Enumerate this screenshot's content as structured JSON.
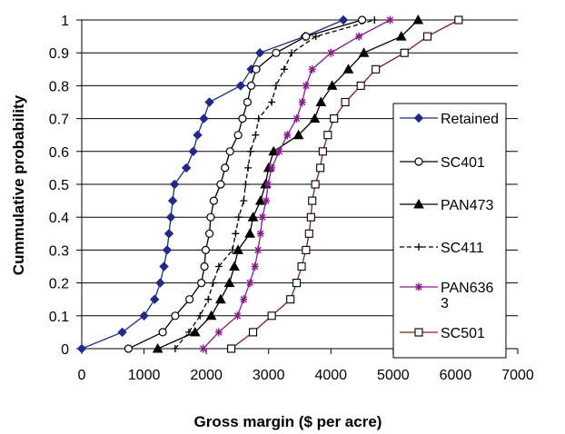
{
  "chart_data": {
    "type": "line",
    "title": "",
    "xlabel": "Gross margin ($ per acre)",
    "ylabel": "Cummulative probability",
    "xlim": [
      0,
      7000
    ],
    "ylim": [
      0,
      1
    ],
    "xticks": [
      0,
      1000,
      2000,
      3000,
      4000,
      5000,
      6000,
      7000
    ],
    "yticks": [
      0,
      0.1,
      0.2,
      0.3,
      0.4,
      0.5,
      0.6,
      0.7,
      0.8,
      0.9,
      1
    ],
    "grid": "horizontal",
    "legend": "right",
    "series": [
      {
        "name": "Retained",
        "color": "#1f2a8c",
        "marker": "diamond-filled",
        "points": [
          [
            0,
            0
          ],
          [
            650,
            0.05
          ],
          [
            1000,
            0.1
          ],
          [
            1170,
            0.15
          ],
          [
            1260,
            0.2
          ],
          [
            1320,
            0.25
          ],
          [
            1370,
            0.3
          ],
          [
            1400,
            0.35
          ],
          [
            1430,
            0.4
          ],
          [
            1460,
            0.45
          ],
          [
            1490,
            0.5
          ],
          [
            1680,
            0.55
          ],
          [
            1790,
            0.6
          ],
          [
            1860,
            0.65
          ],
          [
            1960,
            0.7
          ],
          [
            2050,
            0.75
          ],
          [
            2550,
            0.8
          ],
          [
            2720,
            0.85
          ],
          [
            2860,
            0.9
          ],
          [
            3580,
            0.95
          ],
          [
            4200,
            1
          ]
        ]
      },
      {
        "name": "SC401",
        "color": "#000000",
        "marker": "circle-open",
        "points": [
          [
            750,
            0
          ],
          [
            1300,
            0.05
          ],
          [
            1500,
            0.1
          ],
          [
            1730,
            0.15
          ],
          [
            1920,
            0.2
          ],
          [
            1970,
            0.25
          ],
          [
            1990,
            0.3
          ],
          [
            2050,
            0.35
          ],
          [
            2070,
            0.4
          ],
          [
            2120,
            0.45
          ],
          [
            2230,
            0.5
          ],
          [
            2300,
            0.55
          ],
          [
            2380,
            0.6
          ],
          [
            2510,
            0.65
          ],
          [
            2580,
            0.7
          ],
          [
            2660,
            0.75
          ],
          [
            2720,
            0.8
          ],
          [
            2800,
            0.85
          ],
          [
            3120,
            0.9
          ],
          [
            3600,
            0.95
          ],
          [
            4500,
            1
          ]
        ]
      },
      {
        "name": "PAN473",
        "color": "#000000",
        "marker": "triangle-filled",
        "points": [
          [
            1220,
            0
          ],
          [
            1820,
            0.05
          ],
          [
            2080,
            0.1
          ],
          [
            2230,
            0.15
          ],
          [
            2370,
            0.2
          ],
          [
            2450,
            0.25
          ],
          [
            2510,
            0.3
          ],
          [
            2700,
            0.35
          ],
          [
            2750,
            0.4
          ],
          [
            2870,
            0.45
          ],
          [
            2950,
            0.5
          ],
          [
            3000,
            0.55
          ],
          [
            3080,
            0.6
          ],
          [
            3480,
            0.65
          ],
          [
            3740,
            0.7
          ],
          [
            3840,
            0.75
          ],
          [
            4020,
            0.8
          ],
          [
            4280,
            0.85
          ],
          [
            4530,
            0.9
          ],
          [
            5130,
            0.95
          ],
          [
            5400,
            1
          ]
        ]
      },
      {
        "name": "SC411",
        "color": "#000000",
        "marker": "plus",
        "points": [
          [
            1500,
            0
          ],
          [
            1720,
            0.05
          ],
          [
            1900,
            0.1
          ],
          [
            2030,
            0.15
          ],
          [
            2110,
            0.2
          ],
          [
            2200,
            0.25
          ],
          [
            2420,
            0.3
          ],
          [
            2470,
            0.35
          ],
          [
            2520,
            0.4
          ],
          [
            2600,
            0.45
          ],
          [
            2630,
            0.5
          ],
          [
            2670,
            0.55
          ],
          [
            2710,
            0.6
          ],
          [
            2790,
            0.65
          ],
          [
            2840,
            0.7
          ],
          [
            3050,
            0.75
          ],
          [
            3120,
            0.8
          ],
          [
            3250,
            0.85
          ],
          [
            3370,
            0.9
          ],
          [
            3760,
            0.95
          ],
          [
            4700,
            1
          ]
        ]
      },
      {
        "name": "PAN6363",
        "color": "#8b1a8b",
        "marker": "asterisk",
        "points": [
          [
            1950,
            0
          ],
          [
            2200,
            0.05
          ],
          [
            2500,
            0.1
          ],
          [
            2600,
            0.15
          ],
          [
            2700,
            0.2
          ],
          [
            2780,
            0.25
          ],
          [
            2830,
            0.3
          ],
          [
            2870,
            0.35
          ],
          [
            2900,
            0.4
          ],
          [
            2960,
            0.45
          ],
          [
            2990,
            0.5
          ],
          [
            3050,
            0.55
          ],
          [
            3170,
            0.6
          ],
          [
            3300,
            0.65
          ],
          [
            3450,
            0.7
          ],
          [
            3540,
            0.75
          ],
          [
            3600,
            0.8
          ],
          [
            3700,
            0.85
          ],
          [
            4000,
            0.9
          ],
          [
            4450,
            0.95
          ],
          [
            4950,
            1
          ]
        ]
      },
      {
        "name": "SC501",
        "color": "#8b1a1a",
        "marker": "square-open",
        "points": [
          [
            2400,
            0
          ],
          [
            2750,
            0.05
          ],
          [
            3050,
            0.1
          ],
          [
            3350,
            0.15
          ],
          [
            3450,
            0.2
          ],
          [
            3530,
            0.25
          ],
          [
            3600,
            0.3
          ],
          [
            3650,
            0.35
          ],
          [
            3680,
            0.4
          ],
          [
            3700,
            0.45
          ],
          [
            3750,
            0.5
          ],
          [
            3830,
            0.55
          ],
          [
            3870,
            0.6
          ],
          [
            3950,
            0.65
          ],
          [
            4050,
            0.7
          ],
          [
            4230,
            0.75
          ],
          [
            4480,
            0.8
          ],
          [
            4720,
            0.85
          ],
          [
            5180,
            0.9
          ],
          [
            5550,
            0.95
          ],
          [
            6050,
            1
          ]
        ]
      }
    ],
    "legend_entries": [
      {
        "label": "Retained"
      },
      {
        "label": "SC401"
      },
      {
        "label": "PAN473"
      },
      {
        "label": "SC411"
      },
      {
        "label": "PAN636",
        "label_line2": "3"
      },
      {
        "label": "SC501"
      }
    ]
  }
}
